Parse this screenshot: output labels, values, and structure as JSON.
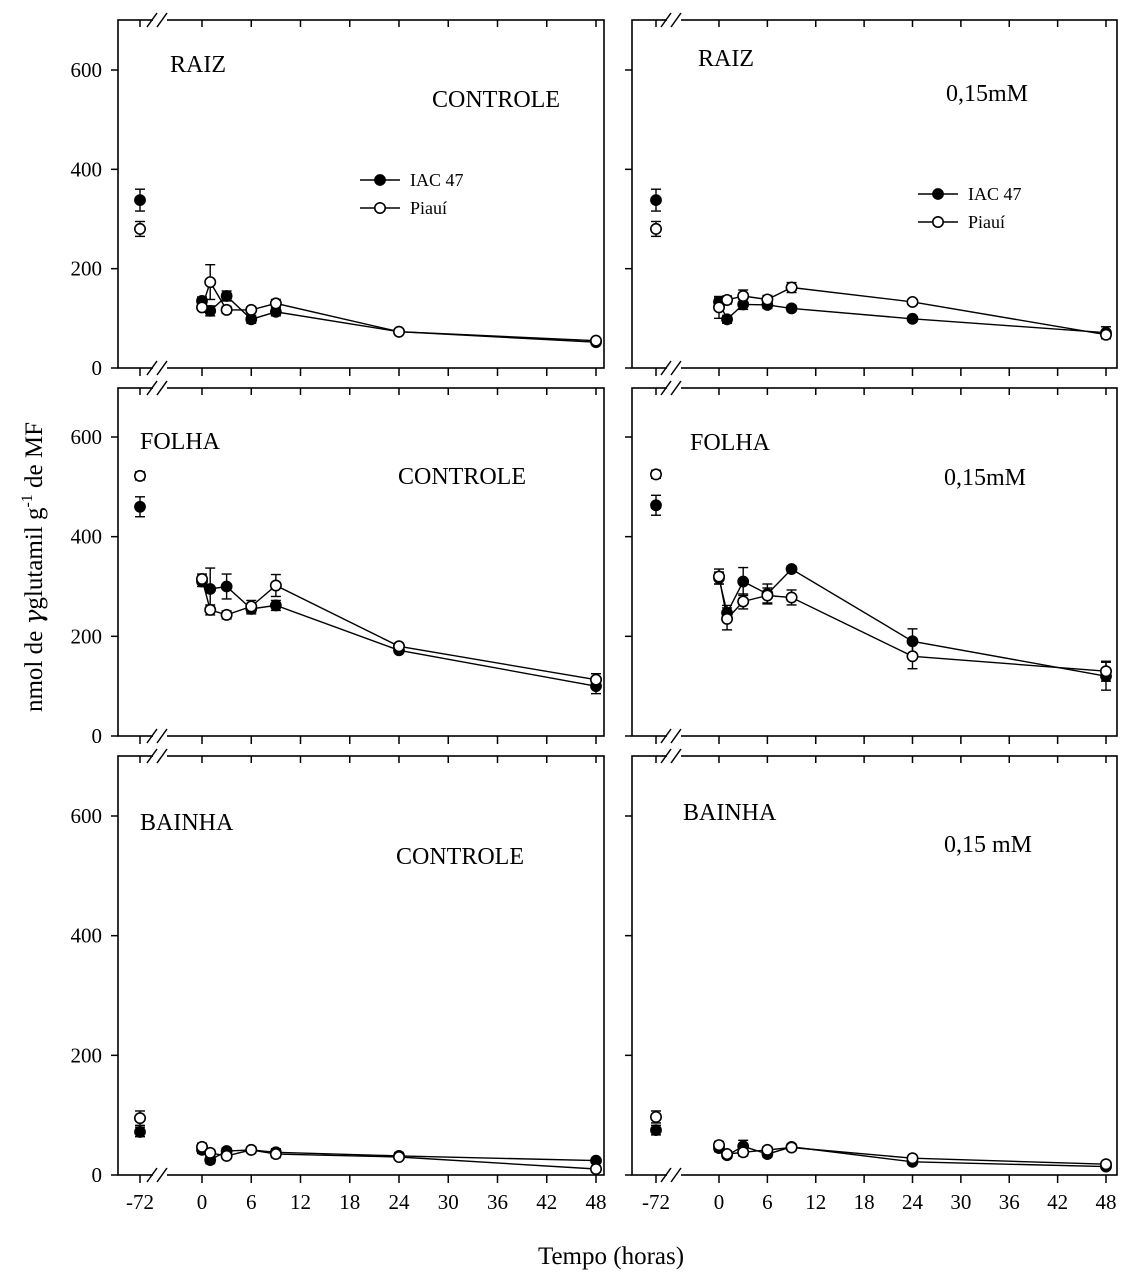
{
  "xlabel": "Tempo (horas)",
  "ylabel_pre": "nmol de ",
  "ylabel_gamma": "γ",
  "ylabel_mid": "glutamil g",
  "ylabel_sup": "-1",
  "ylabel_post": " de MF",
  "legend": {
    "s1": "IAC 47",
    "s2": "Piauí"
  },
  "chart_data": [
    {
      "type": "line",
      "id": "raiz-controle",
      "organ": "RAIZ",
      "treatment": "CONTROLE",
      "ylim": [
        0,
        600
      ],
      "yticks": [
        0,
        200,
        400,
        600
      ],
      "xbreak_tick": -72,
      "xticks": [
        0,
        6,
        12,
        18,
        24,
        30,
        36,
        42,
        48
      ],
      "xtick_labels": [
        "-72",
        "0",
        "6",
        "12",
        "18",
        "24",
        "30",
        "36",
        "42",
        "48"
      ],
      "show_legend": true,
      "series": [
        {
          "name": "IAC 47",
          "marker": "filled",
          "x": [
            -72,
            0,
            1,
            3,
            6,
            9,
            24,
            48
          ],
          "y": [
            338,
            135,
            115,
            145,
            98,
            113,
            73,
            52
          ],
          "err": [
            22,
            8,
            10,
            10,
            8,
            8,
            4,
            5
          ]
        },
        {
          "name": "Piauí",
          "marker": "open",
          "x": [
            -72,
            0,
            1,
            3,
            6,
            9,
            24,
            48
          ],
          "y": [
            280,
            122,
            173,
            117,
            117,
            130,
            73,
            55
          ],
          "err": [
            15,
            6,
            35,
            7,
            6,
            8,
            4,
            5
          ]
        }
      ]
    },
    {
      "type": "line",
      "id": "raiz-015",
      "organ": "RAIZ",
      "treatment": "0,15mM",
      "ylim": [
        0,
        600
      ],
      "yticks": [
        0,
        200,
        400,
        600
      ],
      "xbreak_tick": -72,
      "xticks": [
        0,
        6,
        12,
        18,
        24,
        30,
        36,
        42,
        48
      ],
      "xtick_labels": [
        "-72",
        "0",
        "6",
        "12",
        "18",
        "24",
        "30",
        "36",
        "42",
        "48"
      ],
      "show_legend": true,
      "series": [
        {
          "name": "IAC 47",
          "marker": "filled",
          "x": [
            -72,
            0,
            1,
            3,
            6,
            9,
            24,
            48
          ],
          "y": [
            338,
            133,
            98,
            128,
            127,
            120,
            99,
            71
          ],
          "err": [
            22,
            8,
            8,
            10,
            7,
            6,
            5,
            12
          ]
        },
        {
          "name": "Piauí",
          "marker": "open",
          "x": [
            -72,
            0,
            1,
            3,
            6,
            9,
            24,
            48
          ],
          "y": [
            280,
            122,
            137,
            145,
            138,
            162,
            133,
            67
          ],
          "err": [
            15,
            22,
            8,
            12,
            8,
            10,
            5,
            5
          ]
        }
      ]
    },
    {
      "type": "line",
      "id": "folha-controle",
      "organ": "FOLHA",
      "treatment": "CONTROLE",
      "ylim": [
        0,
        600
      ],
      "yticks": [
        0,
        200,
        400,
        600
      ],
      "xbreak_tick": -72,
      "xticks": [
        0,
        6,
        12,
        18,
        24,
        30,
        36,
        42,
        48
      ],
      "xtick_labels": [
        "-72",
        "0",
        "6",
        "12",
        "18",
        "24",
        "30",
        "36",
        "42",
        "48"
      ],
      "show_legend": false,
      "series": [
        {
          "name": "IAC 47",
          "marker": "filled",
          "x": [
            -72,
            0,
            1,
            3,
            6,
            9,
            24,
            48
          ],
          "y": [
            460,
            310,
            295,
            300,
            255,
            262,
            172,
            100
          ],
          "err": [
            20,
            10,
            42,
            25,
            10,
            10,
            5,
            15
          ]
        },
        {
          "name": "Piauí",
          "marker": "open",
          "x": [
            -72,
            0,
            1,
            3,
            6,
            9,
            24,
            48
          ],
          "y": [
            522,
            315,
            253,
            243,
            260,
            302,
            180,
            113
          ],
          "err": [
            8,
            10,
            10,
            8,
            12,
            22,
            6,
            12
          ]
        }
      ]
    },
    {
      "type": "line",
      "id": "folha-015",
      "organ": "FOLHA",
      "treatment": "0,15mM",
      "ylim": [
        0,
        600
      ],
      "yticks": [
        0,
        200,
        400,
        600
      ],
      "xbreak_tick": -72,
      "xticks": [
        0,
        6,
        12,
        18,
        24,
        30,
        36,
        42,
        48
      ],
      "xtick_labels": [
        "-72",
        "0",
        "6",
        "12",
        "18",
        "24",
        "30",
        "36",
        "42",
        "48"
      ],
      "show_legend": false,
      "series": [
        {
          "name": "IAC 47",
          "marker": "filled",
          "x": [
            -72,
            0,
            1,
            3,
            6,
            9,
            24,
            48
          ],
          "y": [
            463,
            317,
            247,
            310,
            285,
            335,
            190,
            120
          ],
          "err": [
            20,
            12,
            15,
            28,
            20,
            6,
            25,
            28
          ]
        },
        {
          "name": "Piauí",
          "marker": "open",
          "x": [
            -72,
            0,
            1,
            3,
            6,
            9,
            24,
            48
          ],
          "y": [
            525,
            320,
            235,
            270,
            282,
            278,
            160,
            130
          ],
          "err": [
            8,
            15,
            22,
            15,
            15,
            15,
            25,
            20
          ]
        }
      ]
    },
    {
      "type": "line",
      "id": "bainha-controle",
      "organ": "BAINHA",
      "treatment": "CONTROLE",
      "ylim": [
        0,
        600
      ],
      "yticks": [
        0,
        200,
        400,
        600
      ],
      "xbreak_tick": -72,
      "xticks": [
        0,
        6,
        12,
        18,
        24,
        30,
        36,
        42,
        48
      ],
      "xtick_labels": [
        "-72",
        "0",
        "6",
        "12",
        "18",
        "24",
        "30",
        "36",
        "42",
        "48"
      ],
      "show_legend": false,
      "series": [
        {
          "name": "IAC 47",
          "marker": "filled",
          "x": [
            -72,
            0,
            1,
            3,
            6,
            9,
            24,
            48
          ],
          "y": [
            72,
            42,
            25,
            40,
            42,
            38,
            32,
            24
          ],
          "err": [
            8,
            6,
            6,
            5,
            4,
            6,
            5,
            4
          ]
        },
        {
          "name": "Piauí",
          "marker": "open",
          "x": [
            -72,
            0,
            1,
            3,
            6,
            9,
            24,
            48
          ],
          "y": [
            95,
            47,
            37,
            32,
            42,
            35,
            30,
            10
          ],
          "err": [
            12,
            6,
            5,
            5,
            5,
            6,
            4,
            5
          ]
        }
      ]
    },
    {
      "type": "line",
      "id": "bainha-015",
      "organ": "BAINHA",
      "treatment": "0,15 mM",
      "ylim": [
        0,
        600
      ],
      "yticks": [
        0,
        200,
        400,
        600
      ],
      "xbreak_tick": -72,
      "xticks": [
        0,
        6,
        12,
        18,
        24,
        30,
        36,
        42,
        48
      ],
      "xtick_labels": [
        "-72",
        "0",
        "6",
        "12",
        "18",
        "24",
        "30",
        "36",
        "42",
        "48"
      ],
      "show_legend": false,
      "series": [
        {
          "name": "IAC 47",
          "marker": "filled",
          "x": [
            -72,
            0,
            1,
            3,
            6,
            9,
            24,
            48
          ],
          "y": [
            75,
            45,
            33,
            48,
            35,
            47,
            22,
            14
          ],
          "err": [
            8,
            6,
            5,
            10,
            5,
            5,
            4,
            4
          ]
        },
        {
          "name": "Piauí",
          "marker": "open",
          "x": [
            -72,
            0,
            1,
            3,
            6,
            9,
            24,
            48
          ],
          "y": [
            97,
            50,
            35,
            38,
            42,
            46,
            28,
            18
          ],
          "err": [
            10,
            6,
            5,
            6,
            5,
            5,
            4,
            4
          ]
        }
      ]
    }
  ]
}
